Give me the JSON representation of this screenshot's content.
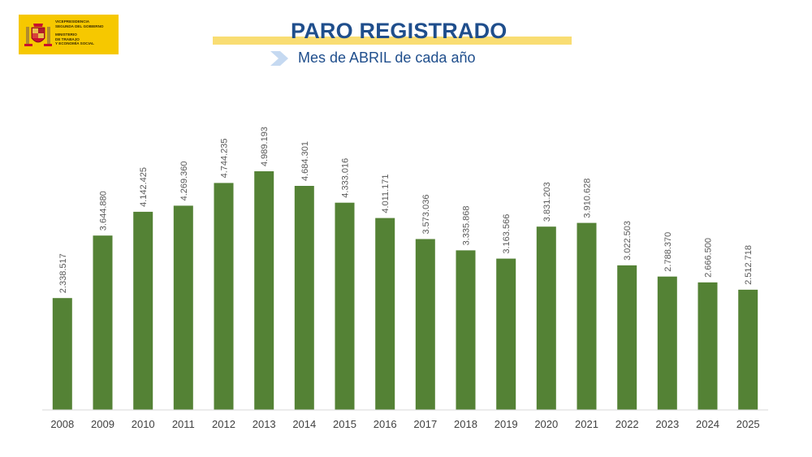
{
  "header": {
    "logo_lines": [
      "VICEPRESIDENCIA",
      "SEGUNDA DEL GOBIERNO",
      "MINISTERIO",
      "DE TRABAJO",
      "Y ECONOMÍA SOCIAL"
    ],
    "logo_bg_color": "#f6c800",
    "title": "PARO REGISTRADO",
    "subtitle": "Mes de ABRIL de cada año",
    "title_color": "#1f4e8c",
    "accent_bar_color": "#f9dd73",
    "chevron_color": "#c5d9f1"
  },
  "chart_data": {
    "type": "bar",
    "categories": [
      "2008",
      "2009",
      "2010",
      "2011",
      "2012",
      "2013",
      "2014",
      "2015",
      "2016",
      "2017",
      "2018",
      "2019",
      "2020",
      "2021",
      "2022",
      "2023",
      "2024",
      "2025"
    ],
    "values": [
      2338517,
      3644880,
      4142425,
      4269360,
      4744235,
      4989193,
      4684301,
      4333016,
      4011171,
      3573036,
      3335868,
      3163566,
      3831203,
      3910628,
      3022503,
      2788370,
      2666500,
      2512718
    ],
    "data_labels": [
      "2.338.517",
      "3.644.880",
      "4.142.425",
      "4.269.360",
      "4.744.235",
      "4.989.193",
      "4.684.301",
      "4.333.016",
      "4.011.171",
      "3.573.036",
      "3.335.868",
      "3.163.566",
      "3.831.203",
      "3.910.628",
      "3.022.503",
      "2.788.370",
      "2.666.500",
      "2.512.718"
    ],
    "title": "PARO REGISTRADO",
    "xlabel": "",
    "ylabel": "",
    "ylim": [
      0,
      5400000
    ],
    "grid": false,
    "legend": "none",
    "bar_color": "#548235"
  }
}
